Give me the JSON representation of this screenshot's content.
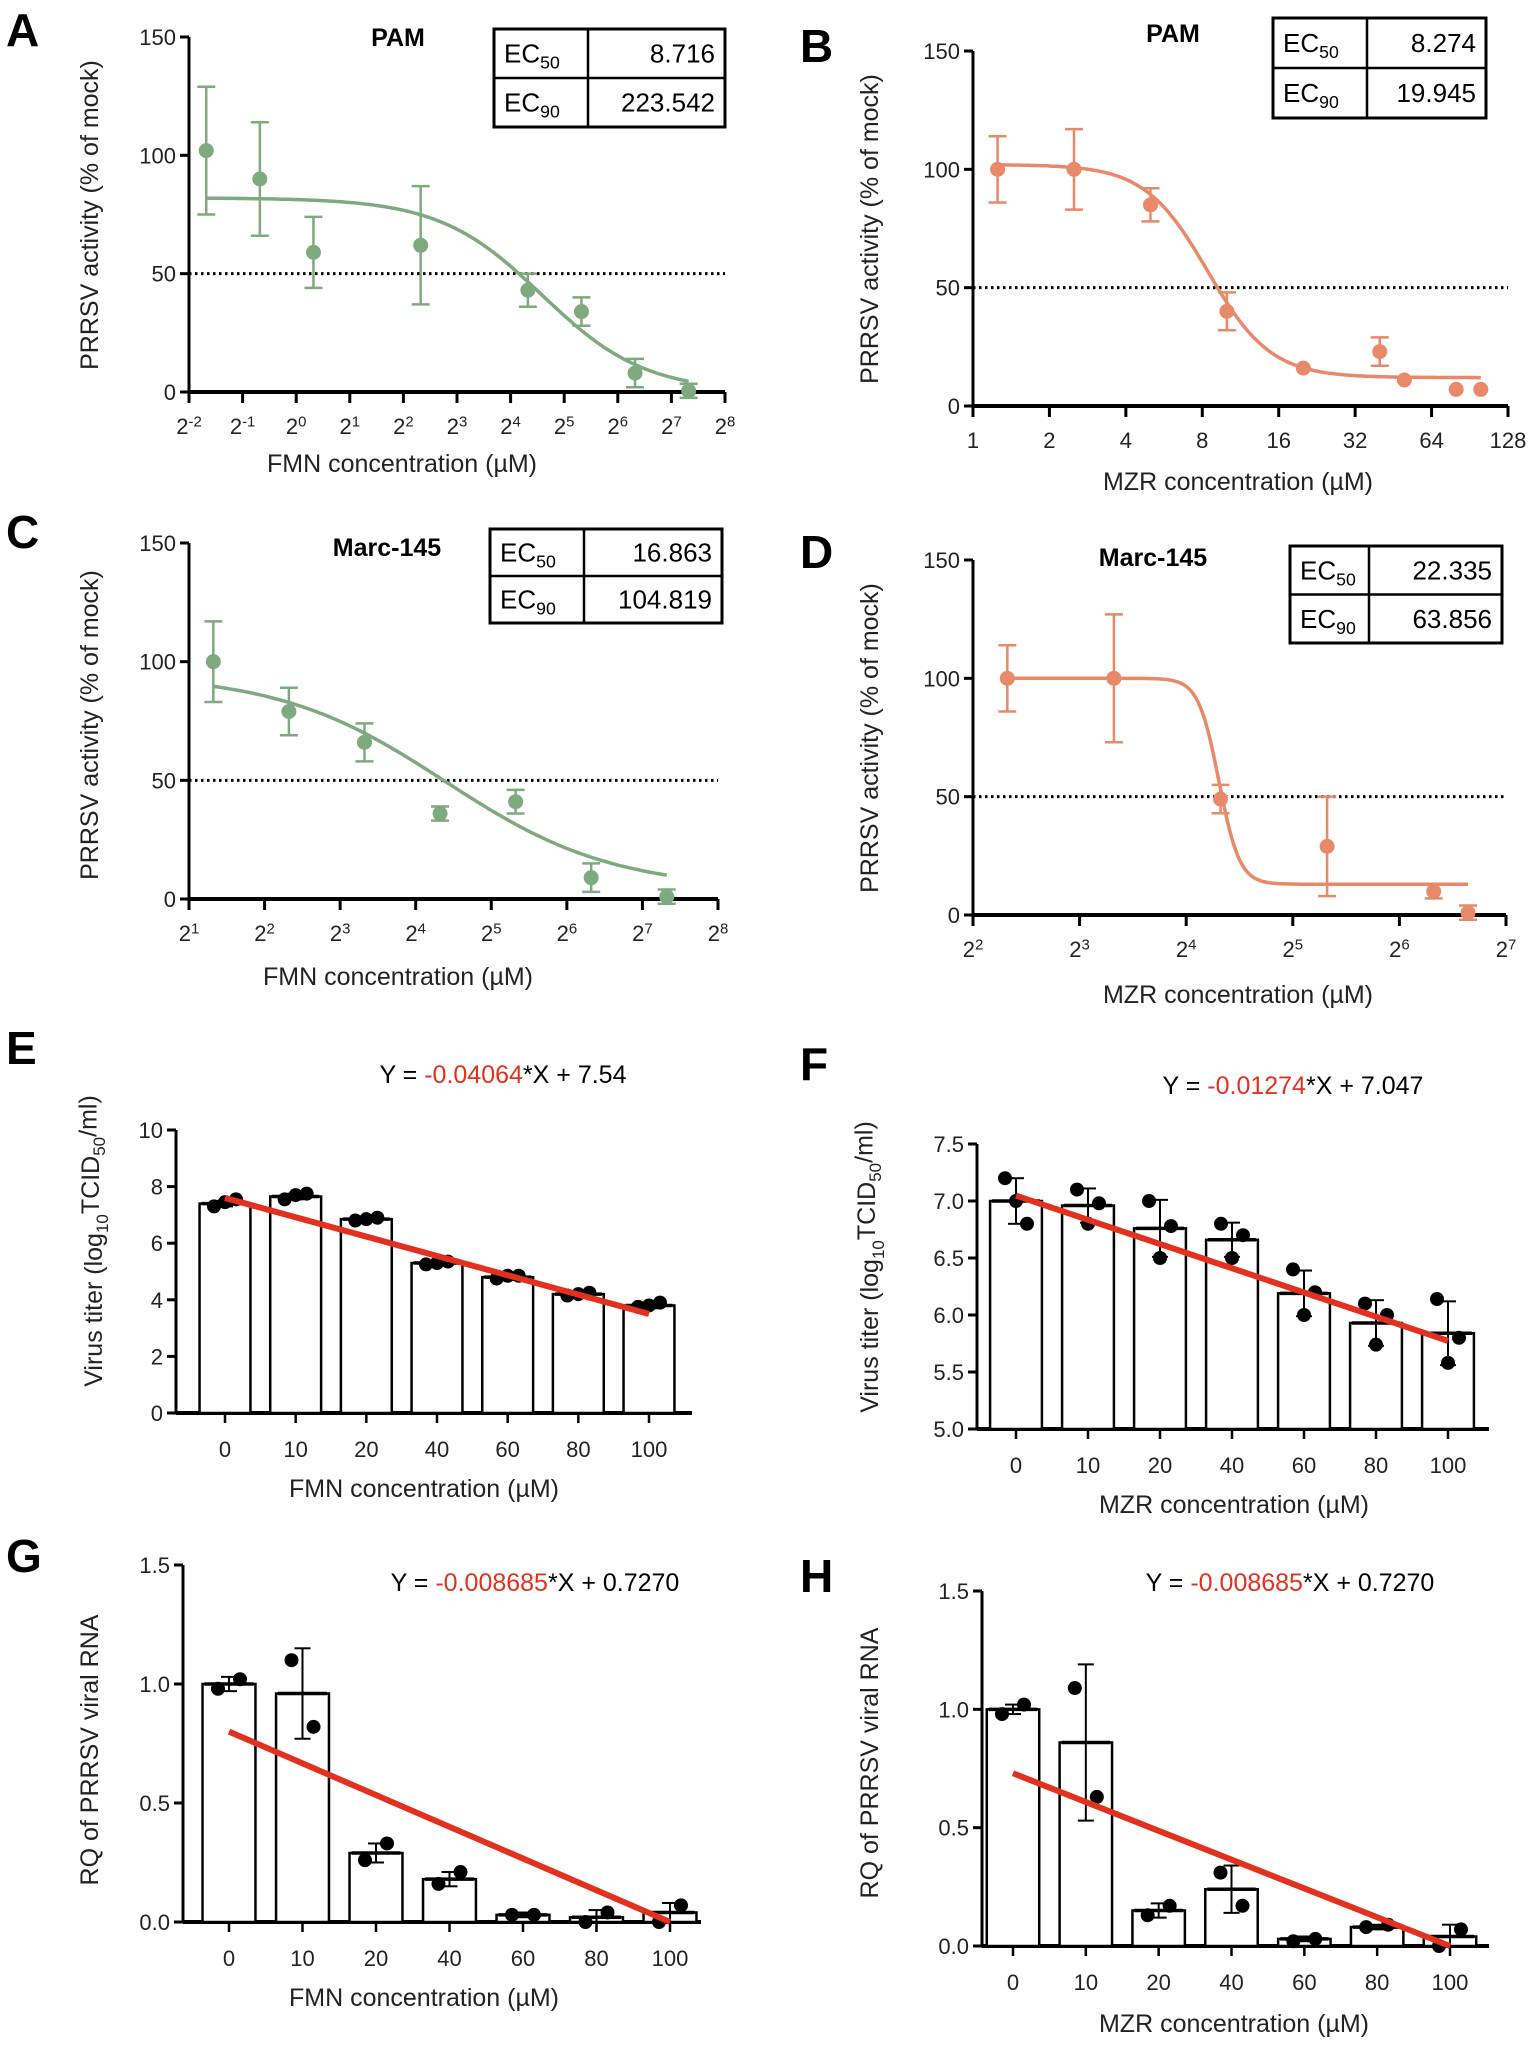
{
  "colors": {
    "fmn": "#7fa97f",
    "mzr": "#e8896a",
    "fit_line": "#e3311f",
    "slope_text": "#e3311f"
  },
  "chart_data": [
    {
      "id": "A",
      "type": "scatter",
      "panel_letter": "A",
      "title": "PAM",
      "xlabel": "FMN concentration (µM)",
      "ylabel": "PRRSV activity (% of mock)",
      "xscale": "log2",
      "xlim": [
        0.25,
        256
      ],
      "ylim": [
        0,
        150
      ],
      "xtick_values": [
        0.25,
        0.5,
        1,
        2,
        4,
        8,
        16,
        32,
        64,
        128,
        256
      ],
      "xtick_labels": [
        "2^-2",
        "2^-1",
        "2^0",
        "2^1",
        "2^2",
        "2^3",
        "2^4",
        "2^5",
        "2^6",
        "2^7",
        "2^8"
      ],
      "ytick_values": [
        0,
        50,
        100,
        150
      ],
      "ytick_labels": [
        "0",
        "50",
        "100",
        "150"
      ],
      "reference_line": 50,
      "color": "#7fa97f",
      "points": {
        "x": [
          0.3125,
          0.625,
          1.25,
          5,
          20,
          40,
          80,
          160
        ],
        "y": [
          102,
          90,
          59,
          62,
          43,
          34,
          8,
          0.5
        ],
        "err": [
          27,
          24,
          15,
          25,
          7,
          6,
          6,
          3
        ]
      },
      "fit": {
        "top": 82,
        "bottom": 0,
        "midpoint": 24,
        "hill": 1.5
      },
      "ec_table": [
        {
          "label": "EC",
          "sub": "50",
          "value": "8.716"
        },
        {
          "label": "EC",
          "sub": "90",
          "value": "223.542"
        }
      ]
    },
    {
      "id": "B",
      "type": "scatter",
      "panel_letter": "B",
      "title": "PAM",
      "xlabel": "MZR concentration (µM)",
      "ylabel": "PRRSV activity (% of mock)",
      "xscale": "log2",
      "xlim": [
        1,
        128
      ],
      "ylim": [
        0,
        150
      ],
      "xtick_values": [
        1,
        2,
        4,
        8,
        16,
        32,
        64,
        128
      ],
      "xtick_labels": [
        "1",
        "2",
        "4",
        "8",
        "16",
        "32",
        "64",
        "128"
      ],
      "ytick_values": [
        0,
        50,
        100,
        150
      ],
      "ytick_labels": [
        "0",
        "50",
        "100",
        "150"
      ],
      "reference_line": 50,
      "color": "#e8896a",
      "points": {
        "x": [
          1.25,
          2.5,
          5,
          10,
          20,
          40,
          50,
          80,
          100
        ],
        "y": [
          100,
          100,
          85,
          40,
          16,
          23,
          11,
          7,
          7
        ],
        "err": [
          14,
          17,
          7,
          8,
          0,
          6,
          0,
          0,
          0
        ]
      },
      "fit": {
        "top": 102,
        "bottom": 12,
        "midpoint": 8.4,
        "hill": 3.5
      },
      "ec_table": [
        {
          "label": "EC",
          "sub": "50",
          "value": "8.274"
        },
        {
          "label": "EC",
          "sub": "90",
          "value": "19.945"
        }
      ]
    },
    {
      "id": "C",
      "type": "scatter",
      "panel_letter": "C",
      "title": "Marc-145",
      "xlabel": "FMN concentration (µM)",
      "ylabel": "PRRSV activity (% of mock)",
      "xscale": "log2",
      "xlim": [
        2,
        256
      ],
      "ylim": [
        0,
        150
      ],
      "xtick_values": [
        2,
        4,
        8,
        16,
        32,
        64,
        128,
        256
      ],
      "xtick_labels": [
        "2^1",
        "2^2",
        "2^3",
        "2^4",
        "2^5",
        "2^6",
        "2^7",
        "2^8"
      ],
      "ytick_values": [
        0,
        50,
        100,
        150
      ],
      "ytick_labels": [
        "0",
        "50",
        "100",
        "150"
      ],
      "reference_line": 50,
      "color": "#7fa97f",
      "points": {
        "x": [
          2.5,
          5,
          10,
          20,
          40,
          80,
          160
        ],
        "y": [
          100,
          79,
          66,
          36,
          41,
          9,
          1
        ],
        "err": [
          17,
          10,
          8,
          3,
          5,
          6,
          3
        ]
      },
      "fit": {
        "top": 95,
        "bottom": 4,
        "midpoint": 21,
        "hill": 1.3
      },
      "ec_table": [
        {
          "label": "EC",
          "sub": "50",
          "value": "16.863"
        },
        {
          "label": "EC",
          "sub": "90",
          "value": "104.819"
        }
      ]
    },
    {
      "id": "D",
      "type": "scatter",
      "panel_letter": "D",
      "title": "Marc-145",
      "xlabel": "MZR concentration (µM)",
      "ylabel": "PRRSV activity (% of mock)",
      "xscale": "log2",
      "xlim": [
        4,
        128
      ],
      "ylim": [
        0,
        150
      ],
      "xtick_values": [
        4,
        8,
        16,
        32,
        64,
        128
      ],
      "xtick_labels": [
        "2^2",
        "2^3",
        "2^4",
        "2^5",
        "2^6",
        "2^7"
      ],
      "ytick_values": [
        0,
        50,
        100,
        150
      ],
      "ytick_labels": [
        "0",
        "50",
        "100",
        "150"
      ],
      "reference_line": 50,
      "color": "#e8896a",
      "points": {
        "x": [
          5,
          10,
          20,
          40,
          80,
          100
        ],
        "y": [
          100,
          100,
          49,
          29,
          10,
          1
        ],
        "err": [
          14,
          27,
          6,
          21,
          3,
          3
        ]
      },
      "fit": {
        "top": 100,
        "bottom": 13,
        "midpoint": 19.8,
        "hill": 15
      },
      "ec_table": [
        {
          "label": "EC",
          "sub": "50",
          "value": "22.335"
        },
        {
          "label": "EC",
          "sub": "90",
          "value": "63.856"
        }
      ]
    },
    {
      "id": "E",
      "type": "bar",
      "panel_letter": "E",
      "xlabel": "FMN concentration (µM)",
      "ylabel_parts": [
        {
          "t": "Virus titer (log"
        },
        {
          "t": "10",
          "sub": true
        },
        {
          "t": "TCID"
        },
        {
          "t": "50",
          "sub": true
        },
        {
          "t": "/ml)"
        }
      ],
      "categories": [
        "0",
        "10",
        "20",
        "40",
        "60",
        "80",
        "100"
      ],
      "values": [
        7.4,
        7.65,
        6.85,
        5.3,
        4.8,
        4.2,
        3.8
      ],
      "err": [
        0.1,
        0.1,
        0.08,
        0.08,
        0.1,
        0.1,
        0.1
      ],
      "replicates": [
        [
          7.3,
          7.45,
          7.55
        ],
        [
          7.55,
          7.7,
          7.75
        ],
        [
          6.8,
          6.85,
          6.9
        ],
        [
          5.25,
          5.3,
          5.35
        ],
        [
          4.75,
          4.85,
          4.85
        ],
        [
          4.15,
          4.2,
          4.25
        ],
        [
          3.75,
          3.8,
          3.9
        ]
      ],
      "ylim": [
        0,
        10
      ],
      "ytick_values": [
        0,
        2,
        4,
        6,
        8,
        10
      ],
      "ytick_labels": [
        "0",
        "2",
        "4",
        "6",
        "8",
        "10"
      ],
      "fit_line": [
        7.6,
        3.5
      ],
      "equation": {
        "prefix": "Y = ",
        "slope": "-0.04064",
        "suffix": "*X + 7.54"
      }
    },
    {
      "id": "F",
      "type": "bar",
      "panel_letter": "F",
      "xlabel": "MZR concentration (µM)",
      "ylabel_parts": [
        {
          "t": "Virus titer (log"
        },
        {
          "t": "10",
          "sub": true
        },
        {
          "t": "TCID"
        },
        {
          "t": "50",
          "sub": true
        },
        {
          "t": "/ml)"
        }
      ],
      "categories": [
        "0",
        "10",
        "20",
        "40",
        "60",
        "80",
        "100"
      ],
      "values": [
        7.0,
        6.96,
        6.76,
        6.66,
        6.19,
        5.93,
        5.84
      ],
      "err": [
        0.2,
        0.15,
        0.25,
        0.15,
        0.2,
        0.2,
        0.28
      ],
      "replicates": [
        [
          7.2,
          7.0,
          6.8
        ],
        [
          7.1,
          6.8,
          6.98
        ],
        [
          7.0,
          6.5,
          6.78
        ],
        [
          6.8,
          6.5,
          6.7
        ],
        [
          6.4,
          6.0,
          6.2
        ],
        [
          6.1,
          5.74,
          6.0
        ],
        [
          6.14,
          5.58,
          5.8
        ]
      ],
      "ylim": [
        5,
        7.5
      ],
      "ytick_values": [
        5,
        5.5,
        6,
        6.5,
        7,
        7.5
      ],
      "ytick_labels": [
        "5.0",
        "5.5",
        "6.0",
        "6.5",
        "7.0",
        "7.5"
      ],
      "fit_line": [
        7.047,
        5.773
      ],
      "equation": {
        "prefix": "Y = ",
        "slope": "-0.01274",
        "suffix": "*X + 7.047"
      }
    },
    {
      "id": "G",
      "type": "bar",
      "panel_letter": "G",
      "xlabel": "FMN concentration (µM)",
      "ylabel_parts": [
        {
          "t": "RQ of PRRSV viral RNA"
        }
      ],
      "categories": [
        "0",
        "10",
        "20",
        "40",
        "60",
        "80",
        "100"
      ],
      "values": [
        1.0,
        0.96,
        0.29,
        0.18,
        0.03,
        0.02,
        0.04
      ],
      "err": [
        0.03,
        0.19,
        0.04,
        0.03,
        0.01,
        0.03,
        0.04
      ],
      "replicates": [
        [
          0.98,
          1.02
        ],
        [
          1.1,
          0.82
        ],
        [
          0.26,
          0.33
        ],
        [
          0.16,
          0.21
        ],
        [
          0.03,
          0.03
        ],
        [
          0.0,
          0.04
        ],
        [
          0.0,
          0.07
        ]
      ],
      "ylim": [
        0,
        1.5
      ],
      "ytick_values": [
        0,
        0.5,
        1,
        1.5
      ],
      "ytick_labels": [
        "0.0",
        "0.5",
        "1.0",
        "1.5"
      ],
      "fit_line": [
        0.8,
        0.0
      ],
      "equation": {
        "prefix": "Y = ",
        "slope": "-0.008685",
        "suffix": "*X + 0.7270"
      }
    },
    {
      "id": "H",
      "type": "bar",
      "panel_letter": "H",
      "xlabel": "MZR concentration (µM)",
      "ylabel_parts": [
        {
          "t": "RQ of PRRSV viral RNA"
        }
      ],
      "categories": [
        "0",
        "10",
        "20",
        "40",
        "60",
        "80",
        "100"
      ],
      "values": [
        1.0,
        0.86,
        0.15,
        0.24,
        0.03,
        0.08,
        0.04
      ],
      "err": [
        0.02,
        0.33,
        0.03,
        0.1,
        0.01,
        0.01,
        0.05
      ],
      "replicates": [
        [
          0.98,
          1.02
        ],
        [
          1.09,
          0.63
        ],
        [
          0.13,
          0.17
        ],
        [
          0.31,
          0.17
        ],
        [
          0.02,
          0.03
        ],
        [
          0.08,
          0.09
        ],
        [
          0.0,
          0.07
        ]
      ],
      "ylim": [
        0,
        1.5
      ],
      "ytick_values": [
        0,
        0.5,
        1,
        1.5
      ],
      "ytick_labels": [
        "0.0",
        "0.5",
        "1.0",
        "1.5"
      ],
      "fit_line": [
        0.73,
        0.0
      ],
      "equation": {
        "prefix": "Y = ",
        "slope": "-0.008685",
        "suffix": "*X + 0.7270"
      }
    }
  ]
}
